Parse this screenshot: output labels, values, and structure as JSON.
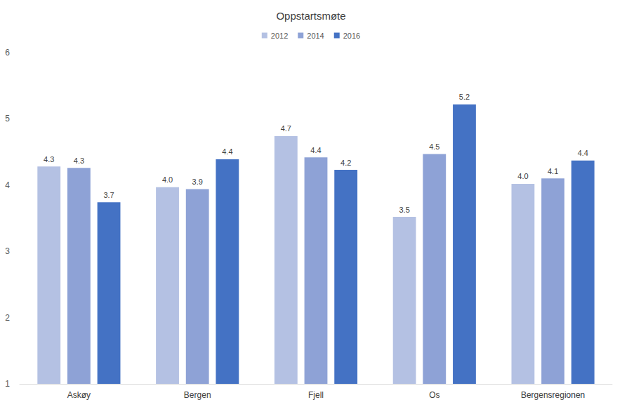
{
  "chart_data": {
    "type": "bar",
    "title": "Oppstartsmøte",
    "categories": [
      "Askøy",
      "Bergen",
      "Fjell",
      "Os",
      "Bergensregionen"
    ],
    "series": [
      {
        "name": "2012",
        "color": "#b4c1e3",
        "values": [
          4.28,
          3.97,
          4.74,
          3.52,
          4.02
        ],
        "value_labels": [
          "4.3",
          "4.0",
          "4.7",
          "3.5",
          "4.0"
        ]
      },
      {
        "name": "2014",
        "color": "#8ea2d6",
        "values": [
          4.26,
          3.94,
          4.42,
          4.47,
          4.1
        ],
        "value_labels": [
          "4.3",
          "3.9",
          "4.4",
          "4.5",
          "4.1"
        ]
      },
      {
        "name": "2016",
        "color": "#4472c4",
        "values": [
          3.74,
          4.39,
          4.23,
          5.22,
          4.37
        ],
        "value_labels": [
          "3.7",
          "4.4",
          "4.2",
          "5.2",
          "4.4"
        ]
      }
    ],
    "ylim": [
      1,
      6
    ],
    "yticks": [
      1,
      2,
      3,
      4,
      5,
      6
    ],
    "grid": false,
    "legend": "top",
    "data_labels": true
  }
}
